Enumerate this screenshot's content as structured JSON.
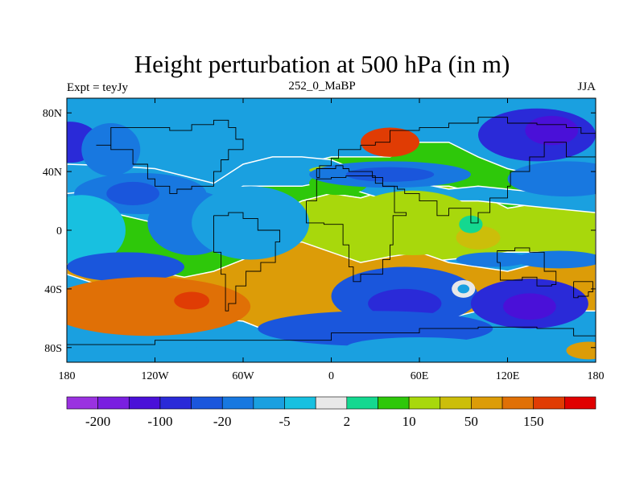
{
  "chart_data": {
    "type": "heatmap",
    "title": "Height perturbation at 500 hPa (in m)",
    "left_string": "Expt = teyJy",
    "center_string": "252_0_MaBP",
    "right_string": "JJA",
    "x_ticks": [
      "180",
      "120W",
      "60W",
      "0",
      "60E",
      "120E",
      "180"
    ],
    "x_tick_values": [
      -180,
      -120,
      -60,
      0,
      60,
      120,
      180
    ],
    "y_ticks": [
      "80N",
      "40N",
      "0",
      "40S",
      "80S"
    ],
    "y_tick_values": [
      80,
      40,
      0,
      -40,
      -80
    ],
    "xlim": [
      -180,
      180
    ],
    "ylim": [
      -90,
      90
    ],
    "colorbar": {
      "colors": [
        "#9a32e0",
        "#7a1fe0",
        "#4a10d8",
        "#2a2ad8",
        "#1a56dc",
        "#1878e0",
        "#1aa0e0",
        "#18c0e0",
        "#e8e8e8",
        "#14d890",
        "#2ec80a",
        "#a8d80c",
        "#ccbe0a",
        "#dc9c08",
        "#e07006",
        "#e03c04",
        "#e00000"
      ],
      "labels": [
        "-200",
        "-100",
        "-20",
        "-5",
        "2",
        "10",
        "50",
        "150"
      ]
    },
    "field_blobs": [
      {
        "lon": -178,
        "lat": 60,
        "rx": 20,
        "ry": 14,
        "level": 3
      },
      {
        "lon": -150,
        "lat": 55,
        "rx": 20,
        "ry": 18,
        "level": 5
      },
      {
        "lon": -168,
        "lat": 10,
        "rx": 16,
        "ry": 14,
        "level": 9
      },
      {
        "lon": -130,
        "lat": 25,
        "rx": 45,
        "ry": 14,
        "level": 5
      },
      {
        "lon": -135,
        "lat": 25,
        "rx": 18,
        "ry": 8,
        "level": 4
      },
      {
        "lon": -170,
        "lat": 0,
        "rx": 30,
        "ry": 24,
        "level": 7
      },
      {
        "lon": -95,
        "lat": 5,
        "rx": 30,
        "ry": 22,
        "level": 5
      },
      {
        "lon": -140,
        "lat": -25,
        "rx": 40,
        "ry": 10,
        "level": 4
      },
      {
        "lon": -55,
        "lat": 5,
        "rx": 40,
        "ry": 25,
        "level": 6
      },
      {
        "lon": -125,
        "lat": -52,
        "rx": 70,
        "ry": 20,
        "level": 14
      },
      {
        "lon": -95,
        "lat": -48,
        "rx": 12,
        "ry": 6,
        "level": 15
      },
      {
        "lon": 40,
        "lat": 60,
        "rx": 20,
        "ry": 10,
        "level": 15
      },
      {
        "lon": 5,
        "lat": 32,
        "rx": 20,
        "ry": 8,
        "level": 10
      },
      {
        "lon": 5,
        "lat": 41,
        "rx": 20,
        "ry": 3,
        "level": 11
      },
      {
        "lon": 40,
        "lat": 38,
        "rx": 55,
        "ry": 9,
        "level": 5
      },
      {
        "lon": 40,
        "lat": 38,
        "rx": 30,
        "ry": 5,
        "level": 4
      },
      {
        "lon": 140,
        "lat": 65,
        "rx": 40,
        "ry": 18,
        "level": 3
      },
      {
        "lon": 150,
        "lat": 68,
        "rx": 18,
        "ry": 10,
        "level": 2
      },
      {
        "lon": 160,
        "lat": 35,
        "rx": 40,
        "ry": 12,
        "level": 5
      },
      {
        "lon": 55,
        "lat": 5,
        "rx": 45,
        "ry": 22,
        "level": 11
      },
      {
        "lon": 100,
        "lat": -5,
        "rx": 15,
        "ry": 8,
        "level": 12
      },
      {
        "lon": 95,
        "lat": 4,
        "rx": 8,
        "ry": 6,
        "level": 9
      },
      {
        "lon": 155,
        "lat": -20,
        "rx": 30,
        "ry": 6,
        "level": 5
      },
      {
        "lon": 110,
        "lat": -20,
        "rx": 25,
        "ry": 5,
        "level": 5
      },
      {
        "lon": 50,
        "lat": -45,
        "rx": 50,
        "ry": 20,
        "level": 4
      },
      {
        "lon": 50,
        "lat": -50,
        "rx": 25,
        "ry": 10,
        "level": 3
      },
      {
        "lon": 135,
        "lat": -50,
        "rx": 40,
        "ry": 17,
        "level": 3
      },
      {
        "lon": 135,
        "lat": -52,
        "rx": 18,
        "ry": 9,
        "level": 2
      },
      {
        "lon": 90,
        "lat": -40,
        "rx": 8,
        "ry": 6,
        "level": 8
      },
      {
        "lon": 90,
        "lat": -40,
        "rx": 4,
        "ry": 3,
        "level": 6
      },
      {
        "lon": 30,
        "lat": -67,
        "rx": 80,
        "ry": 12,
        "level": 4
      },
      {
        "lon": 60,
        "lat": -80,
        "rx": 50,
        "ry": 7,
        "level": 6
      },
      {
        "lon": 175,
        "lat": -82,
        "rx": 15,
        "ry": 6,
        "level": 13
      },
      {
        "lon": -60,
        "lat": -83,
        "rx": 40,
        "ry": 5,
        "level": 6
      }
    ],
    "field_bands": [
      {
        "x": [
          -180,
          -150,
          -120,
          -80,
          -60,
          -40,
          -20,
          0,
          20,
          40,
          60,
          80,
          100,
          120,
          150,
          180
        ],
        "upper": [
          20,
          12,
          5,
          5,
          20,
          40,
          45,
          50,
          50,
          50,
          60,
          60,
          50,
          42,
          35,
          30
        ],
        "lower": [
          -10,
          -25,
          -30,
          -35,
          -20,
          10,
          20,
          25,
          22,
          28,
          30,
          30,
          25,
          15,
          20,
          20
        ],
        "level": 10
      },
      {
        "x": [
          -180,
          -150,
          -120,
          -80,
          -60,
          -40,
          -20,
          0,
          20,
          40,
          60,
          80,
          100,
          120,
          150,
          180
        ],
        "upper": [
          -10,
          -25,
          -30,
          -35,
          -20,
          10,
          20,
          25,
          22,
          28,
          30,
          30,
          25,
          15,
          20,
          20
        ],
        "lower": [
          -25,
          -35,
          -45,
          -65,
          -55,
          -45,
          -45,
          -40,
          -28,
          -25,
          -22,
          -20,
          -18,
          -15,
          -15,
          -18
        ],
        "level": 11
      },
      {
        "x": [
          -180,
          -150,
          -120,
          -80,
          -60,
          -40,
          -20,
          0,
          20,
          40,
          60,
          80,
          100,
          120,
          150,
          180
        ],
        "upper": [
          45,
          44,
          42,
          32,
          45,
          50,
          50,
          48,
          40,
          35,
          32,
          28,
          30,
          28,
          25,
          25
        ],
        "lower": [
          25,
          28,
          34,
          18,
          30,
          30,
          30,
          34,
          26,
          20,
          18,
          20,
          20,
          18,
          15,
          12
        ],
        "level": 6
      },
      {
        "x": [
          -180,
          -150,
          -120,
          -100,
          -80,
          -60,
          -40,
          -20,
          0,
          20,
          40,
          60,
          80,
          100,
          120,
          150,
          180
        ],
        "upper": [
          -15,
          -20,
          -28,
          -32,
          -28,
          -20,
          -10,
          -8,
          -15,
          -22,
          -18,
          -15,
          -22,
          -25,
          -28,
          -20,
          -18
        ],
        "lower": [
          -30,
          -40,
          -50,
          -55,
          -60,
          -62,
          -70,
          -68,
          -70,
          -75,
          -72,
          -65,
          -60,
          -55,
          -55,
          -55,
          -55
        ],
        "level": 13
      }
    ],
    "land_outline": [
      [
        [
          -160,
          58
        ],
        [
          -150,
          70
        ],
        [
          -130,
          70
        ],
        [
          -110,
          68
        ],
        [
          -95,
          72
        ],
        [
          -80,
          75
        ],
        [
          -70,
          70
        ],
        [
          -65,
          62
        ],
        [
          -60,
          55
        ],
        [
          -70,
          48
        ],
        [
          -75,
          40
        ],
        [
          -80,
          30
        ],
        [
          -95,
          28
        ],
        [
          -105,
          25
        ],
        [
          -110,
          30
        ],
        [
          -120,
          35
        ],
        [
          -125,
          45
        ],
        [
          -135,
          55
        ],
        [
          -150,
          58
        ],
        [
          -160,
          58
        ]
      ],
      [
        [
          -80,
          10
        ],
        [
          -70,
          12
        ],
        [
          -60,
          8
        ],
        [
          -50,
          0
        ],
        [
          -35,
          -8
        ],
        [
          -38,
          -22
        ],
        [
          -48,
          -28
        ],
        [
          -58,
          -38
        ],
        [
          -65,
          -50
        ],
        [
          -70,
          -55
        ],
        [
          -72,
          -45
        ],
        [
          -72,
          -30
        ],
        [
          -75,
          -15
        ],
        [
          -80,
          -5
        ],
        [
          -80,
          10
        ]
      ],
      [
        [
          -17,
          20
        ],
        [
          -10,
          35
        ],
        [
          0,
          36
        ],
        [
          10,
          37
        ],
        [
          30,
          32
        ],
        [
          35,
          30
        ],
        [
          43,
          12
        ],
        [
          51,
          10
        ],
        [
          42,
          -10
        ],
        [
          40,
          -20
        ],
        [
          35,
          -30
        ],
        [
          20,
          -35
        ],
        [
          15,
          -25
        ],
        [
          12,
          -10
        ],
        [
          8,
          4
        ],
        [
          -5,
          5
        ],
        [
          -17,
          15
        ],
        [
          -17,
          20
        ]
      ],
      [
        [
          -10,
          36
        ],
        [
          -8,
          44
        ],
        [
          0,
          49
        ],
        [
          5,
          55
        ],
        [
          10,
          55
        ],
        [
          20,
          58
        ],
        [
          30,
          60
        ],
        [
          40,
          68
        ],
        [
          60,
          70
        ],
        [
          80,
          73
        ],
        [
          100,
          77
        ],
        [
          120,
          73
        ],
        [
          140,
          72
        ],
        [
          160,
          70
        ],
        [
          170,
          66
        ],
        [
          180,
          65
        ],
        [
          180,
          50
        ],
        [
          160,
          60
        ],
        [
          145,
          50
        ],
        [
          135,
          40
        ],
        [
          122,
          30
        ],
        [
          120,
          22
        ],
        [
          108,
          12
        ],
        [
          100,
          5
        ],
        [
          95,
          15
        ],
        [
          80,
          10
        ],
        [
          72,
          20
        ],
        [
          60,
          25
        ],
        [
          50,
          28
        ],
        [
          45,
          30
        ],
        [
          35,
          36
        ],
        [
          28,
          40
        ],
        [
          20,
          40
        ],
        [
          12,
          42
        ],
        [
          8,
          44
        ],
        [
          3,
          42
        ],
        [
          -10,
          36
        ]
      ],
      [
        [
          113,
          -22
        ],
        [
          115,
          -34
        ],
        [
          130,
          -32
        ],
        [
          140,
          -38
        ],
        [
          150,
          -37
        ],
        [
          153,
          -28
        ],
        [
          145,
          -15
        ],
        [
          135,
          -12
        ],
        [
          125,
          -14
        ],
        [
          113,
          -22
        ]
      ],
      [
        [
          -180,
          -78
        ],
        [
          -120,
          -75
        ],
        [
          -60,
          -75
        ],
        [
          0,
          -70
        ],
        [
          60,
          -67
        ],
        [
          100,
          -66
        ],
        [
          140,
          -67
        ],
        [
          165,
          -72
        ],
        [
          180,
          -78
        ]
      ],
      [
        [
          165,
          -35
        ],
        [
          178,
          -42
        ],
        [
          175,
          -45
        ],
        [
          168,
          -46
        ],
        [
          165,
          -35
        ]
      ]
    ]
  }
}
